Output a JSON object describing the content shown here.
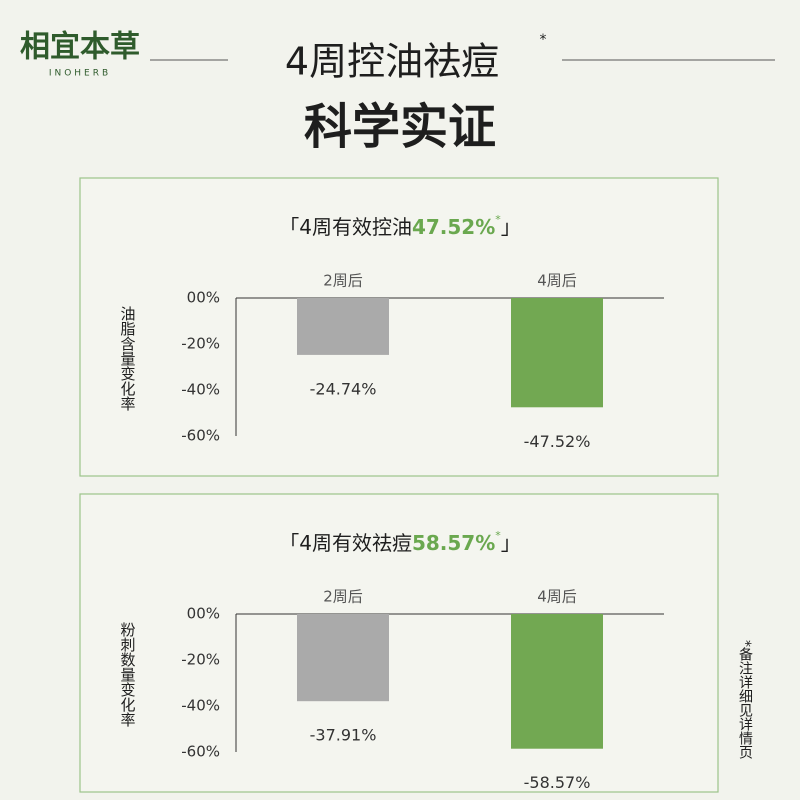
{
  "header": {
    "logo": "相宜本草",
    "logo_en": "INOHERB",
    "title": "4周控油祛痘",
    "title_mark": "*",
    "subtitle": "科学实证",
    "note": "*备注详细见详情页"
  },
  "chart_data": [
    {
      "type": "bar",
      "title_prefix": "「4周有效控油",
      "title_highlight": "47.52%",
      "title_mark": "*",
      "title_suffix": "」",
      "y_label": "油脂含量变化率",
      "categories": [
        "2周后",
        "4周后"
      ],
      "values": [
        -24.74,
        -47.52
      ],
      "value_labels": [
        "-24.74%",
        "-47.52%"
      ],
      "colors": [
        "#aaaaaa",
        "#72a852"
      ],
      "ylim": [
        -60,
        0
      ],
      "yticks": [
        {
          "value": 0,
          "label": "00%"
        },
        {
          "value": -20,
          "label": "-20%"
        },
        {
          "value": -40,
          "label": "-40%"
        },
        {
          "value": -60,
          "label": "-60%"
        }
      ]
    },
    {
      "type": "bar",
      "title_prefix": "「4周有效祛痘",
      "title_highlight": "58.57%",
      "title_mark": "*",
      "title_suffix": "」",
      "y_label": "粉刺数量变化率",
      "categories": [
        "2周后",
        "4周后"
      ],
      "values": [
        -37.91,
        -58.57
      ],
      "value_labels": [
        "-37.91%",
        "-58.57%"
      ],
      "colors": [
        "#aaaaaa",
        "#72a852"
      ],
      "ylim": [
        -60,
        0
      ],
      "yticks": [
        {
          "value": 0,
          "label": "00%"
        },
        {
          "value": -20,
          "label": "-20%"
        },
        {
          "value": -40,
          "label": "-40%"
        },
        {
          "value": -60,
          "label": "-60%"
        }
      ]
    }
  ]
}
